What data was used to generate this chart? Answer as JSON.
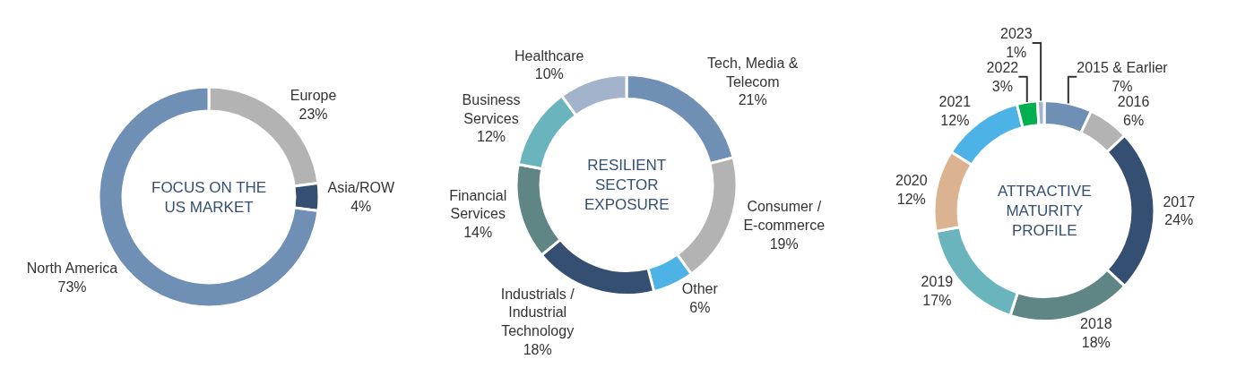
{
  "chart_data": [
    {
      "type": "donut",
      "annotations": [
        "FOCUS ON THE US MARKET"
      ],
      "categories": [
        "Europe",
        "Asia/ROW",
        "North America"
      ],
      "values": [
        23,
        4,
        73
      ],
      "value_labels": [
        "23%",
        "4%",
        "73%"
      ],
      "colors": [
        "#b3b3b3",
        "#344f72",
        "#6f8fb5"
      ]
    },
    {
      "type": "donut",
      "annotations": [
        "RESILIENT SECTOR EXPOSURE"
      ],
      "categories": [
        "Tech, Media & Telecom",
        "Consumer / E-commerce",
        "Other",
        "Industrials / Industrial Technology",
        "Financial Services",
        "Business Services",
        "Healthcare"
      ],
      "values": [
        21,
        19,
        6,
        18,
        14,
        12,
        10
      ],
      "value_labels": [
        "21%",
        "19%",
        "6%",
        "18%",
        "14%",
        "12%",
        "10%"
      ],
      "colors": [
        "#6f8fb5",
        "#b3b3b3",
        "#4db3e6",
        "#344f72",
        "#5f8585",
        "#6ab4bd",
        "#a3b3cc"
      ]
    },
    {
      "type": "donut",
      "annotations": [
        "ATTRACTIVE MATURITY PROFILE"
      ],
      "categories": [
        "2015 & Earlier",
        "2016",
        "2017",
        "2018",
        "2019",
        "2020",
        "2021",
        "2022",
        "2023"
      ],
      "values": [
        7,
        6,
        24,
        18,
        17,
        12,
        12,
        3,
        1
      ],
      "value_labels": [
        "7%",
        "6%",
        "24%",
        "18%",
        "17%",
        "12%",
        "12%",
        "3%",
        "1%"
      ],
      "colors": [
        "#6f8fb5",
        "#b3b3b3",
        "#344f72",
        "#5f8585",
        "#6ab4bd",
        "#dcb390",
        "#4db3e6",
        "#00b050",
        "#a3b3cc"
      ]
    }
  ]
}
